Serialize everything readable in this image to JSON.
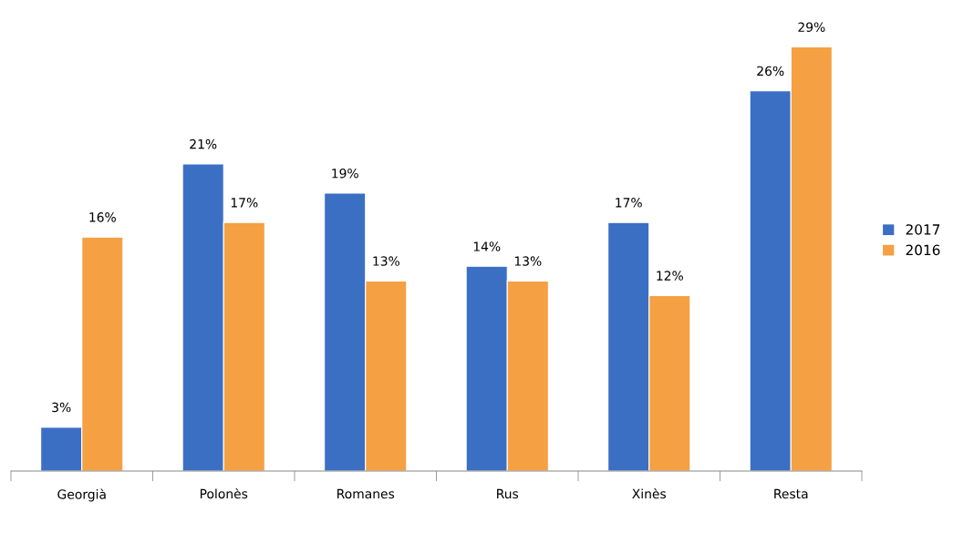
{
  "chart_data": {
    "type": "bar",
    "categories": [
      "Georgià",
      "Polonès",
      "Romanes",
      "Rus",
      "Xinès",
      "Resta"
    ],
    "series": [
      {
        "name": "2017",
        "color": "#3a6fc4",
        "values": [
          3,
          21,
          19,
          14,
          17,
          26
        ],
        "value_labels": [
          "3%",
          "21%",
          "19%",
          "14%",
          "17%",
          "26%"
        ]
      },
      {
        "name": "2016",
        "color": "#f5a043",
        "values": [
          16,
          17,
          13,
          13,
          12,
          29
        ],
        "value_labels": [
          "16%",
          "17%",
          "13%",
          "13%",
          "12%",
          "29%"
        ]
      }
    ],
    "legend": "right",
    "grid": false
  }
}
